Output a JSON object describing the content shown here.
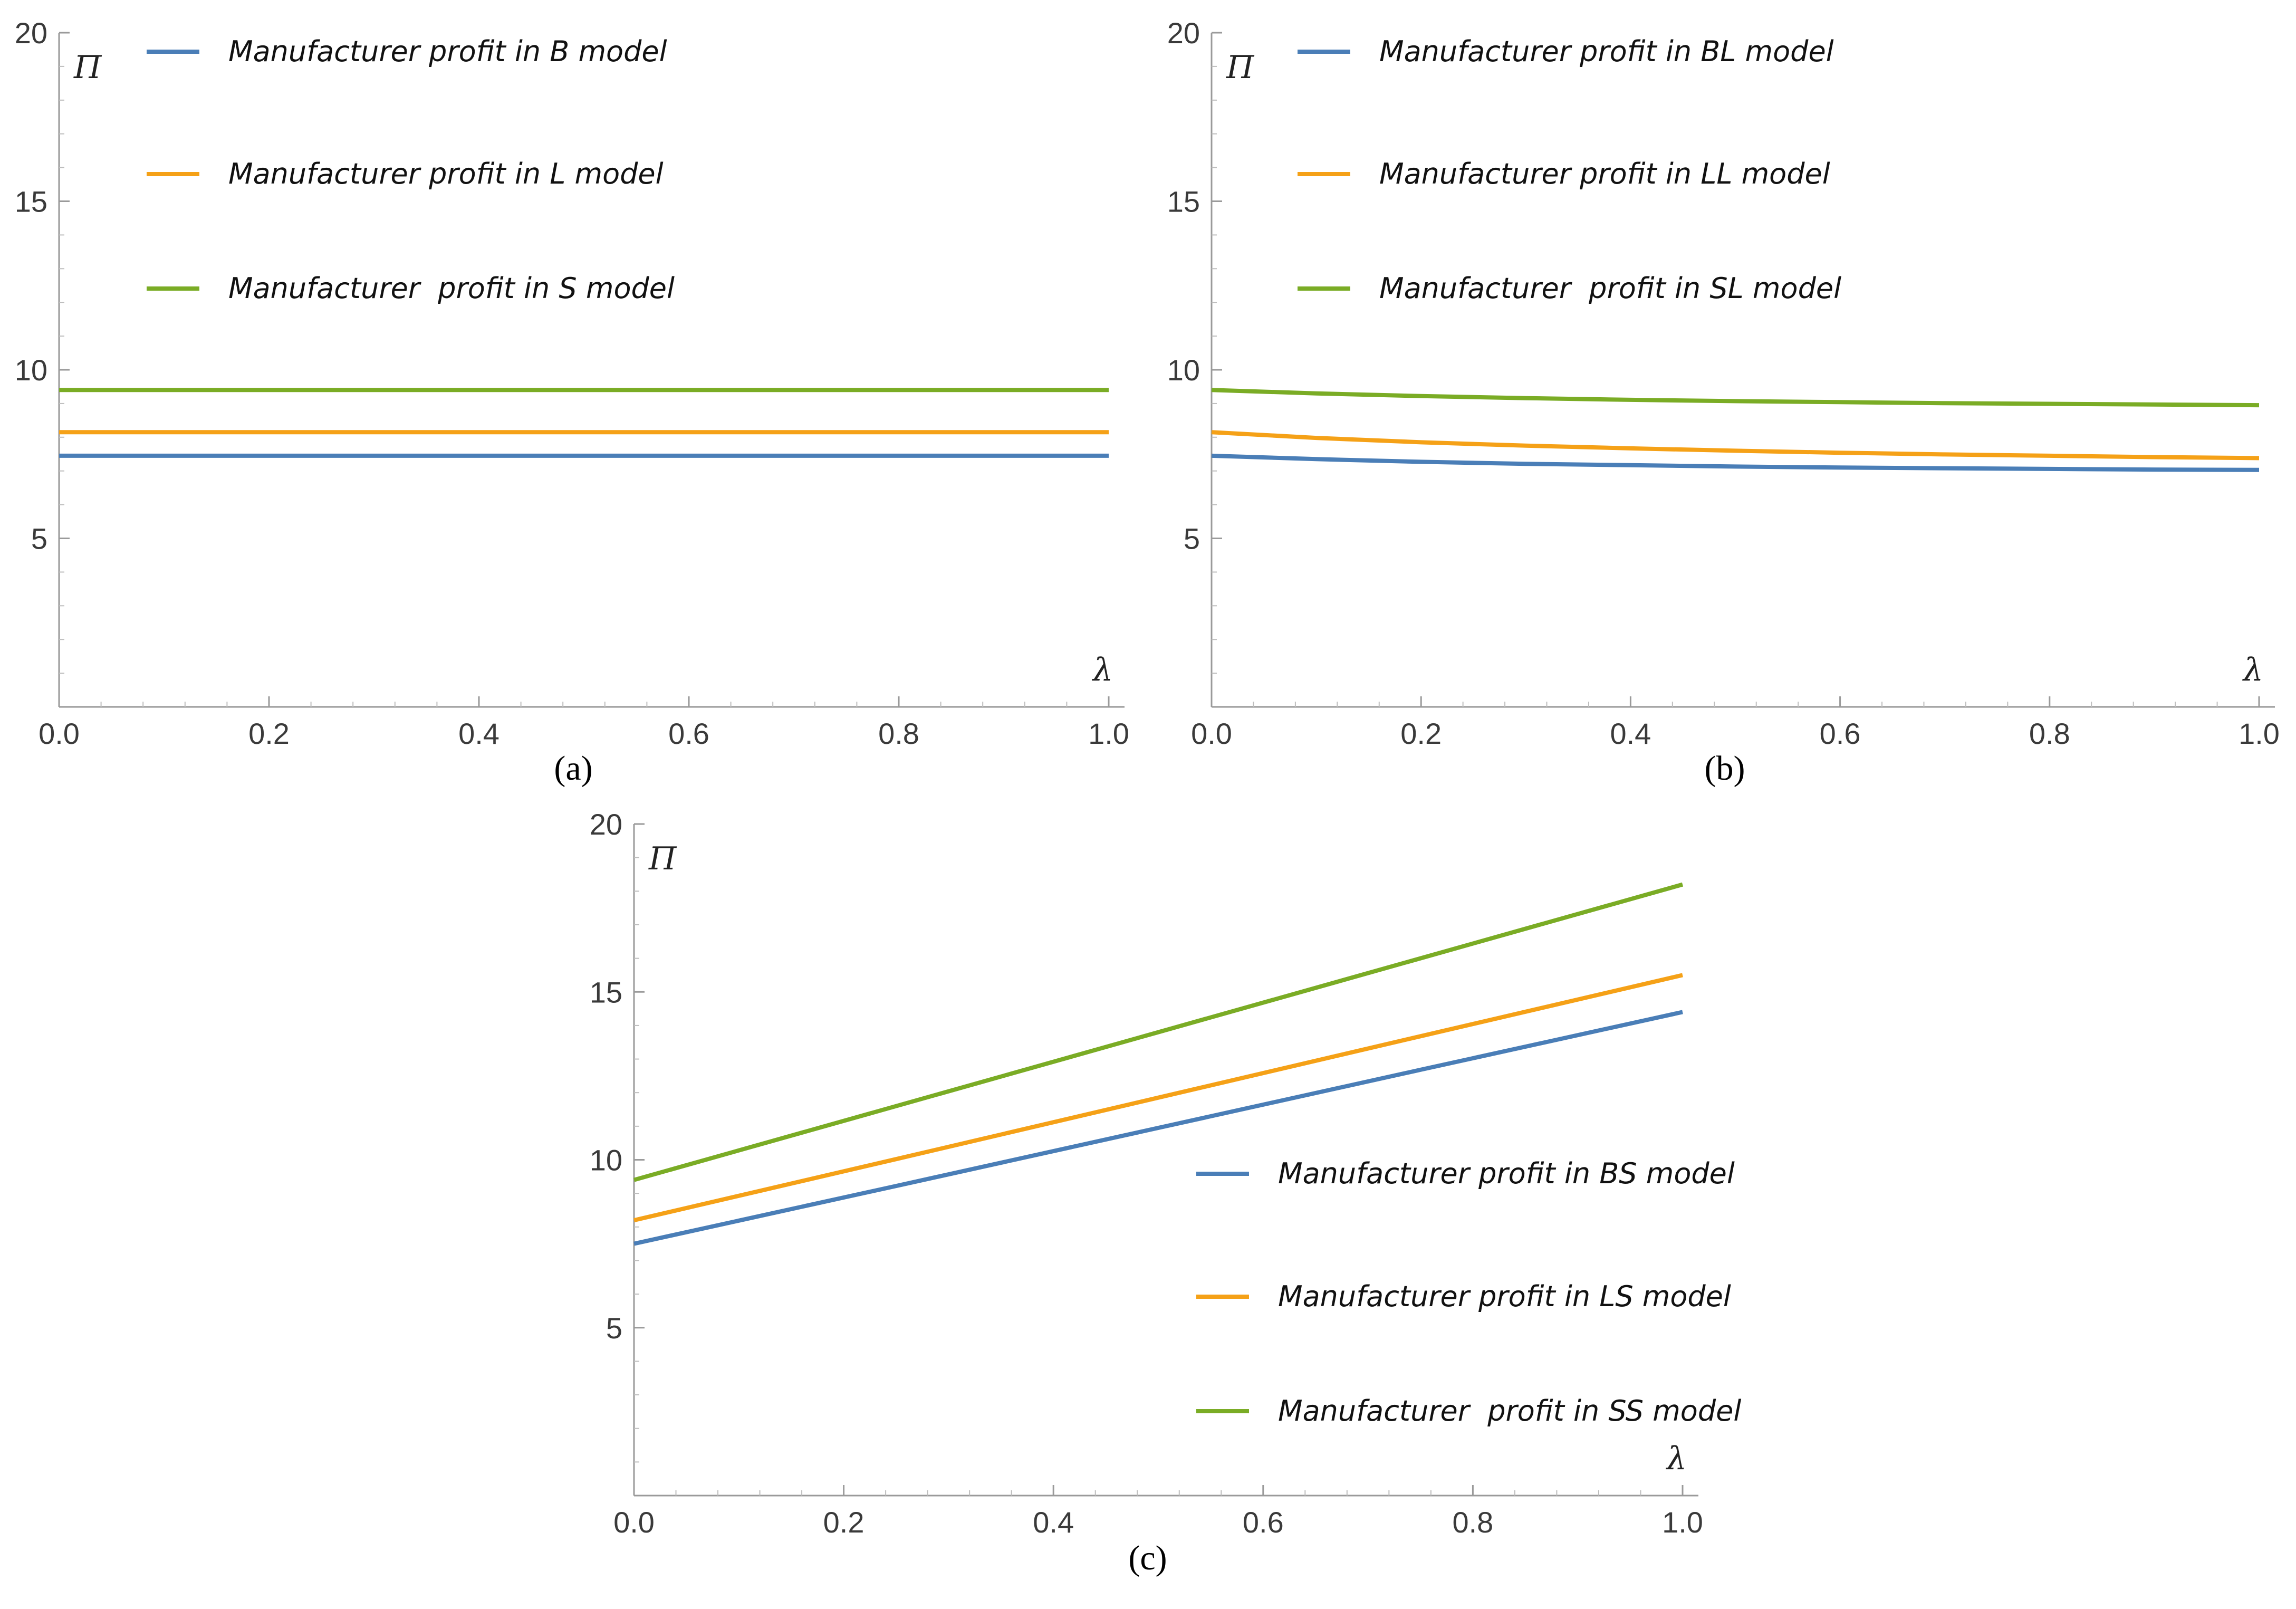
{
  "colors": {
    "blue": "#4a7eb7",
    "orange": "#f5a117",
    "green": "#7aac25"
  },
  "chart_data": [
    {
      "type": "line",
      "panel": "(a)",
      "xlabel": "λ",
      "ylabel": "Π",
      "xlim": [
        0,
        1
      ],
      "ylim": [
        0,
        20
      ],
      "x_ticks": [
        "0.0",
        "0.2",
        "0.4",
        "0.6",
        "0.8",
        "1.0"
      ],
      "y_ticks": [
        "5",
        "10",
        "15",
        "20"
      ],
      "legend_position": "top-left",
      "series": [
        {
          "name": "Manufacturer profit in B model",
          "color": "blue",
          "x": [
            0,
            0.25,
            0.5,
            0.75,
            1.0
          ],
          "y": [
            7.45,
            7.45,
            7.45,
            7.45,
            7.45
          ]
        },
        {
          "name": "Manufacturer profit in L model",
          "color": "orange",
          "x": [
            0,
            0.25,
            0.5,
            0.75,
            1.0
          ],
          "y": [
            8.15,
            8.15,
            8.15,
            8.15,
            8.15
          ]
        },
        {
          "name": "Manufacturer  profit in S model",
          "color": "green",
          "x": [
            0,
            0.25,
            0.5,
            0.75,
            1.0
          ],
          "y": [
            9.4,
            9.4,
            9.4,
            9.4,
            9.4
          ]
        }
      ]
    },
    {
      "type": "line",
      "panel": "(b)",
      "xlabel": "λ",
      "ylabel": "Π",
      "xlim": [
        0,
        1
      ],
      "ylim": [
        0,
        20
      ],
      "x_ticks": [
        "0.0",
        "0.2",
        "0.4",
        "0.6",
        "0.8",
        "1.0"
      ],
      "y_ticks": [
        "5",
        "10",
        "15",
        "20"
      ],
      "legend_position": "top-left",
      "series": [
        {
          "name": "Manufacturer profit in BL model",
          "color": "blue",
          "x": [
            0,
            0.1,
            0.2,
            0.3,
            0.4,
            0.5,
            0.6,
            0.7,
            0.8,
            0.9,
            1.0
          ],
          "y": [
            7.45,
            7.35,
            7.27,
            7.21,
            7.17,
            7.13,
            7.1,
            7.08,
            7.06,
            7.04,
            7.03
          ]
        },
        {
          "name": "Manufacturer profit in LL model",
          "color": "orange",
          "x": [
            0,
            0.1,
            0.2,
            0.3,
            0.4,
            0.5,
            0.6,
            0.7,
            0.8,
            0.9,
            1.0
          ],
          "y": [
            8.15,
            7.98,
            7.85,
            7.75,
            7.67,
            7.6,
            7.54,
            7.49,
            7.45,
            7.41,
            7.38
          ]
        },
        {
          "name": "Manufacturer  profit in SL model",
          "color": "green",
          "x": [
            0,
            0.1,
            0.2,
            0.3,
            0.4,
            0.5,
            0.6,
            0.7,
            0.8,
            0.9,
            1.0
          ],
          "y": [
            9.4,
            9.3,
            9.22,
            9.16,
            9.11,
            9.07,
            9.04,
            9.01,
            8.99,
            8.97,
            8.95
          ]
        }
      ]
    },
    {
      "type": "line",
      "panel": "(c)",
      "xlabel": "λ",
      "ylabel": "Π",
      "xlim": [
        0,
        1
      ],
      "ylim": [
        0,
        20
      ],
      "x_ticks": [
        "0.0",
        "0.2",
        "0.4",
        "0.6",
        "0.8",
        "1.0"
      ],
      "y_ticks": [
        "5",
        "10",
        "15",
        "20"
      ],
      "legend_position": "bottom-right",
      "series": [
        {
          "name": "Manufacturer profit in BS model",
          "color": "blue",
          "x": [
            0,
            0.25,
            0.5,
            0.75,
            1.0
          ],
          "y": [
            7.5,
            9.22,
            10.95,
            12.68,
            14.4
          ]
        },
        {
          "name": "Manufacturer profit in LS model",
          "color": "orange",
          "x": [
            0,
            0.25,
            0.5,
            0.75,
            1.0
          ],
          "y": [
            8.2,
            10.02,
            11.85,
            13.68,
            15.5
          ]
        },
        {
          "name": "Manufacturer  profit in SS model",
          "color": "green",
          "x": [
            0,
            0.25,
            0.5,
            0.75,
            1.0
          ],
          "y": [
            9.4,
            11.6,
            13.8,
            16.0,
            18.2
          ]
        }
      ]
    }
  ]
}
